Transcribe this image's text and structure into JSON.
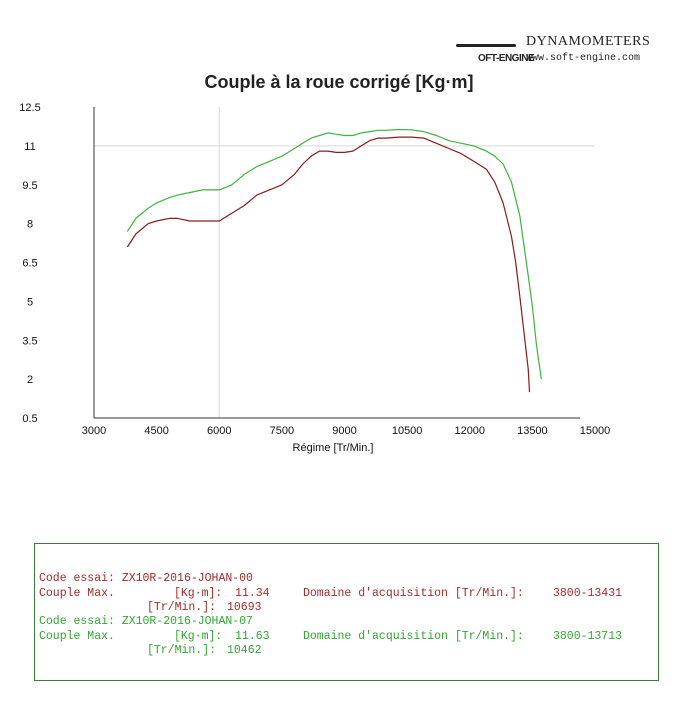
{
  "brand": {
    "wordmark": "DYNAMOMETERS",
    "soft": "OFT-ENGINE",
    "url": "www.soft-engine.com"
  },
  "chart_data": {
    "type": "line",
    "title": "Couple à la roue corrigé [Kg·m]",
    "xlabel": "Régime [Tr/Min.]",
    "ylabel": "",
    "xlim": [
      3000,
      15000
    ],
    "ylim": [
      0.5,
      12.5
    ],
    "x_ticks": [
      "3000",
      "4500",
      "6000",
      "7500",
      "9000",
      "10500",
      "12000",
      "13500",
      "15000"
    ],
    "y_ticks": [
      "12.5",
      "11",
      "9.5",
      "8",
      "6.5",
      "5",
      "3.5",
      "2",
      "0.5"
    ],
    "grid": "x and y at 6000 rpm / 11 Kg·m",
    "series": [
      {
        "color": "#8b1a1a",
        "x": [
          3800,
          4000,
          4300,
          4500,
          4800,
          5000,
          5300,
          5600,
          6000,
          6300,
          6600,
          6900,
          7200,
          7500,
          7800,
          8000,
          8200,
          8400,
          8600,
          8800,
          9000,
          9200,
          9400,
          9600,
          9800,
          10000,
          10300,
          10600,
          10900,
          11200,
          11500,
          11800,
          12100,
          12400,
          12600,
          12800,
          13000,
          13100,
          13200,
          13300,
          13400,
          13431
        ],
        "y": [
          7.1,
          7.6,
          8.0,
          8.1,
          8.2,
          8.2,
          8.1,
          8.1,
          8.1,
          8.4,
          8.7,
          9.1,
          9.3,
          9.5,
          9.9,
          10.3,
          10.6,
          10.8,
          10.8,
          10.75,
          10.75,
          10.8,
          11.0,
          11.2,
          11.3,
          11.3,
          11.34,
          11.34,
          11.3,
          11.1,
          10.9,
          10.7,
          10.4,
          10.1,
          9.6,
          8.8,
          7.5,
          6.5,
          5.2,
          3.8,
          2.4,
          1.5
        ]
      },
      {
        "color": "#3cb43c",
        "x": [
          3800,
          4000,
          4300,
          4500,
          4800,
          5000,
          5300,
          5600,
          6000,
          6300,
          6600,
          6900,
          7200,
          7500,
          7800,
          8000,
          8200,
          8400,
          8600,
          8800,
          9000,
          9200,
          9400,
          9600,
          9800,
          10000,
          10300,
          10600,
          10900,
          11200,
          11500,
          11800,
          12100,
          12400,
          12600,
          12800,
          13000,
          13200,
          13400,
          13500,
          13600,
          13713
        ],
        "y": [
          7.7,
          8.2,
          8.6,
          8.8,
          9.0,
          9.1,
          9.2,
          9.3,
          9.3,
          9.5,
          9.9,
          10.2,
          10.4,
          10.6,
          10.9,
          11.1,
          11.3,
          11.4,
          11.5,
          11.45,
          11.4,
          11.4,
          11.5,
          11.55,
          11.6,
          11.6,
          11.63,
          11.62,
          11.55,
          11.4,
          11.2,
          11.1,
          11.0,
          10.8,
          10.6,
          10.3,
          9.6,
          8.3,
          6.0,
          4.8,
          3.3,
          2.0
        ]
      }
    ]
  },
  "info": {
    "rows": [
      {
        "label": "Code essai:",
        "value": "ZX10R-2016-JOHAN-00",
        "color": "red"
      },
      {
        "label": "Couple Max.",
        "unit": "[Kg·m]:",
        "value": "11.34",
        "domain_label": "Domaine d'acquisition [Tr/Min.]:",
        "domain_value": "3800-13431",
        "color": "red"
      },
      {
        "unit": "[Tr/Min.]:",
        "value": "10693",
        "color": "red"
      },
      {
        "label": "Code essai:",
        "value": "ZX10R-2016-JOHAN-07",
        "color": "green"
      },
      {
        "label": "Couple Max.",
        "unit": "[Kg·m]:",
        "value": "11.63",
        "domain_label": "Domaine d'acquisition [Tr/Min.]:",
        "domain_value": "3800-13713",
        "color": "green"
      },
      {
        "unit": "[Tr/Min.]:",
        "value": "10462",
        "color": "green"
      }
    ]
  }
}
